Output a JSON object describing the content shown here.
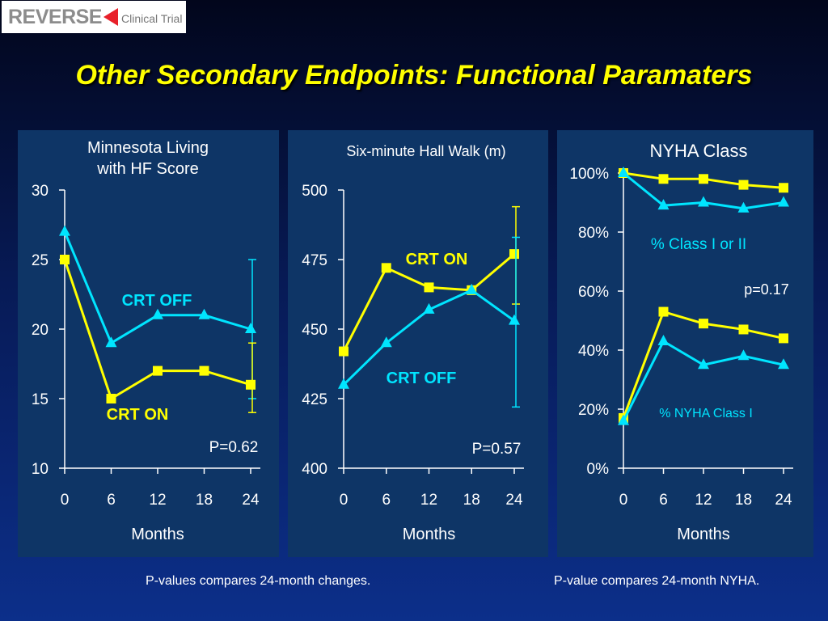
{
  "logo": {
    "word": "REVERSE",
    "subtitle": "Clinical Trial"
  },
  "slide_title": "Other Secondary Endpoints: Functional Paramaters",
  "footnotes": {
    "left": "P-values compares 24-month changes.",
    "right": "P-value compares 24-month NYHA."
  },
  "colors": {
    "crt_on": "#ffff00",
    "crt_off": "#00e5ff",
    "panel": "#0e3566",
    "text": "#ffffff"
  },
  "chart_data": [
    {
      "type": "line",
      "title": "Minnesota Living\nwith HF Score",
      "xlabel": "Months",
      "ylabel": "",
      "x": [
        0,
        6,
        12,
        18,
        24
      ],
      "ylim": [
        10,
        30
      ],
      "yticks": [
        "10",
        "15",
        "20",
        "25",
        "30"
      ],
      "series": [
        {
          "name": "CRT OFF",
          "color": "#00e5ff",
          "marker": "triangle",
          "values": [
            27,
            19,
            21,
            21,
            20
          ],
          "error_bar": {
            "x": 24,
            "low": 15,
            "high": 25
          }
        },
        {
          "name": "CRT ON",
          "color": "#ffff00",
          "marker": "square",
          "values": [
            25,
            15,
            17,
            17,
            16
          ],
          "error_bar": {
            "x": 24,
            "low": 14,
            "high": 19
          }
        }
      ],
      "annotations": [
        {
          "text": "P=0.62"
        }
      ]
    },
    {
      "type": "line",
      "title": "Six-minute Hall Walk (m)",
      "xlabel": "Months",
      "ylabel": "",
      "x": [
        0,
        6,
        12,
        18,
        24
      ],
      "ylim": [
        400,
        500
      ],
      "yticks": [
        "400",
        "425",
        "450",
        "475",
        "500"
      ],
      "series": [
        {
          "name": "CRT ON",
          "color": "#ffff00",
          "marker": "square",
          "values": [
            442,
            472,
            465,
            464,
            477
          ],
          "error_bar": {
            "x": 24,
            "low": 459,
            "high": 494
          }
        },
        {
          "name": "CRT OFF",
          "color": "#00e5ff",
          "marker": "triangle",
          "values": [
            430,
            445,
            457,
            464,
            453
          ],
          "error_bar": {
            "x": 24,
            "low": 422,
            "high": 483
          }
        }
      ],
      "annotations": [
        {
          "text": "P=0.57"
        }
      ]
    },
    {
      "type": "line",
      "title": "NYHA Class",
      "xlabel": "Months",
      "ylabel": "",
      "x": [
        0,
        6,
        12,
        18,
        24
      ],
      "ylim": [
        0,
        100
      ],
      "yticks": [
        "0%",
        "20%",
        "40%",
        "60%",
        "80%",
        "100%"
      ],
      "series": [
        {
          "name": "% Class I or II (CRT ON)",
          "color": "#ffff00",
          "marker": "square",
          "values": [
            100,
            98,
            98,
            96,
            95
          ]
        },
        {
          "name": "% Class I or II (CRT OFF)",
          "color": "#00e5ff",
          "marker": "triangle",
          "values": [
            100,
            89,
            90,
            88,
            90
          ]
        },
        {
          "name": "% NYHA Class I (CRT ON)",
          "color": "#ffff00",
          "marker": "square",
          "values": [
            17,
            53,
            49,
            47,
            44
          ]
        },
        {
          "name": "% NYHA Class I (CRT OFF)",
          "color": "#00e5ff",
          "marker": "triangle",
          "values": [
            16,
            43,
            35,
            38,
            35
          ]
        }
      ],
      "annotations": [
        {
          "text": "% Class I or II"
        },
        {
          "text": "p=0.17"
        },
        {
          "text": "% NYHA Class I"
        }
      ]
    }
  ]
}
